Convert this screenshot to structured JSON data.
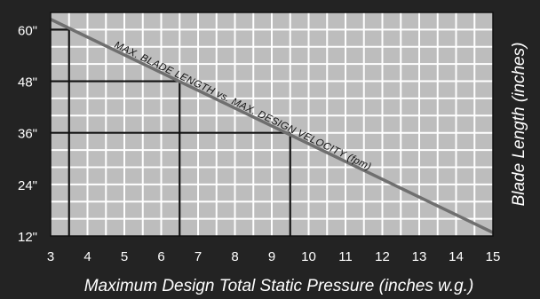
{
  "chart_data": {
    "type": "line",
    "title": "",
    "xlabel": "Maximum Design Total Static Pressure (inches w.g.)",
    "ylabel": "Blade Length (inches)",
    "x_ticks": [
      "3",
      "4",
      "5",
      "6",
      "7",
      "8",
      "9",
      "10",
      "11",
      "12",
      "13",
      "14",
      "15"
    ],
    "y_ticks": [
      "12\"",
      "24\"",
      "36\"",
      "48\"",
      "60\""
    ],
    "xlim": [
      3,
      15
    ],
    "ylim": [
      12,
      64
    ],
    "grid": true,
    "series": [
      {
        "name": "MAX. BLADE LENGTH vs. MAX. DESIGN VELOCITY (fpm)",
        "color": "#6f6f6f",
        "x": [
          3,
          15
        ],
        "y": [
          62.4,
          12.8
        ]
      }
    ],
    "reference_lines": [
      {
        "x": 3.5,
        "y": 60
      },
      {
        "x": 6.5,
        "y": 48
      },
      {
        "x": 9.5,
        "y": 36
      }
    ],
    "annotation": "MAX. BLADE LENGTH vs. MAX. DESIGN VELOCITY (fpm)"
  }
}
